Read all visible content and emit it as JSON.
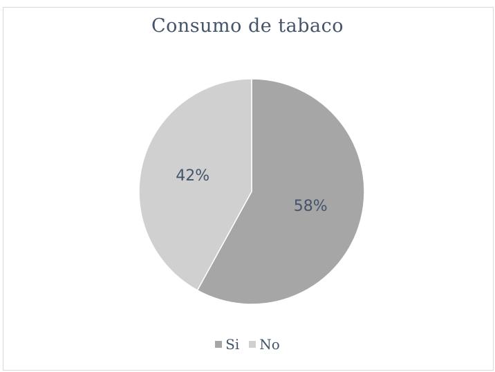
{
  "chart_data": {
    "type": "pie",
    "title": "Consumo de tabaco",
    "slices": [
      {
        "label": "Si",
        "value": 58,
        "display": "58%",
        "color": "#a6a6a6"
      },
      {
        "label": "No",
        "value": 42,
        "display": "42%",
        "color": "#d0d0d0"
      }
    ],
    "legend_position": "bottom",
    "legend": [
      "Si",
      "No"
    ]
  }
}
